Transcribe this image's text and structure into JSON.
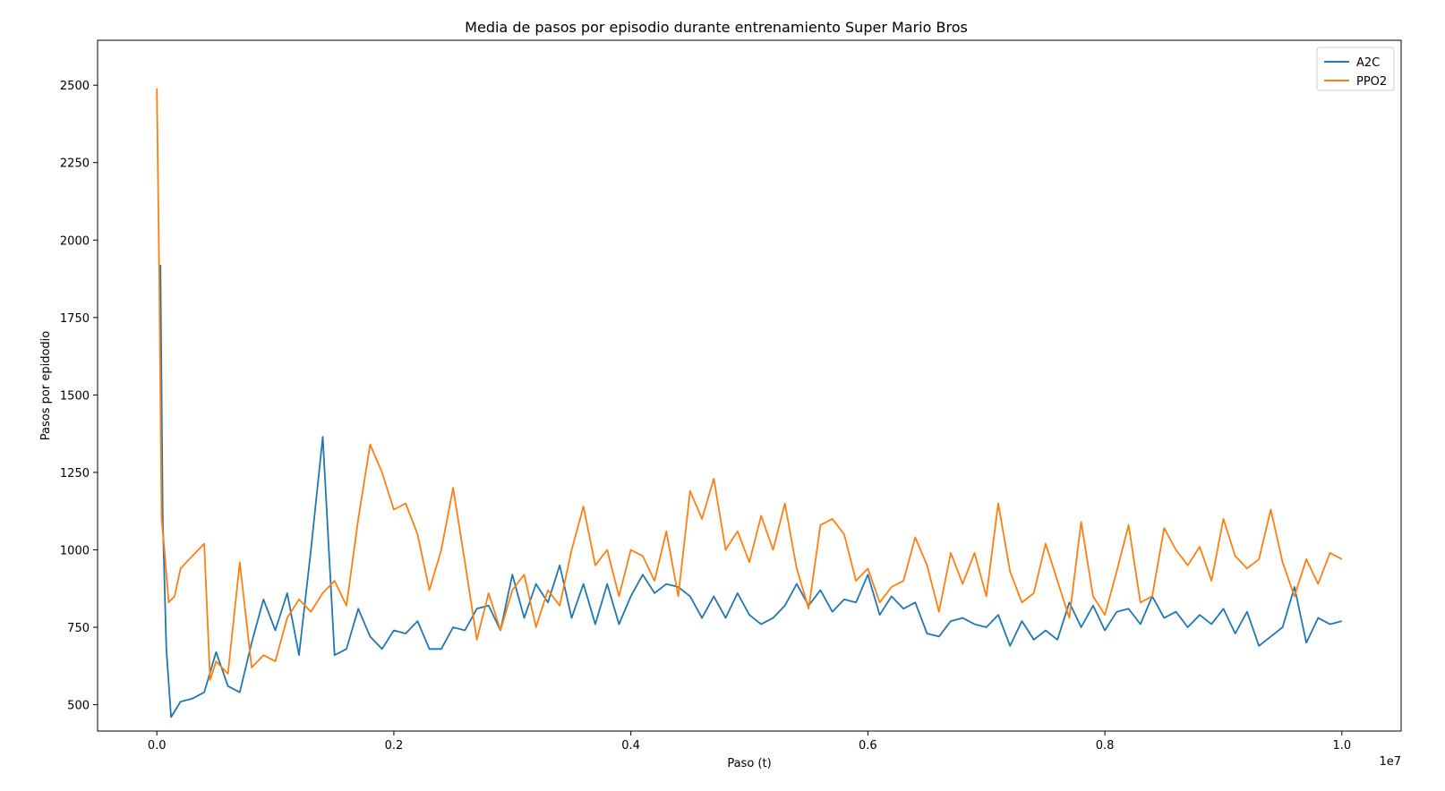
{
  "chart_data": {
    "type": "line",
    "title": "Media de pasos por episodio durante entrenamiento Super Mario Bros",
    "xlabel": "Paso (t)",
    "ylabel": "Pasos por epidodio",
    "x_offset_label": "1e7",
    "xlim": [
      -0.05,
      1.05
    ],
    "ylim": [
      415,
      2645
    ],
    "x_ticks": [
      0.0,
      0.2,
      0.4,
      0.6,
      0.8,
      1.0
    ],
    "x_tick_labels": [
      "0.0",
      "0.2",
      "0.4",
      "0.6",
      "0.8",
      "1.0"
    ],
    "y_ticks": [
      500,
      750,
      1000,
      1250,
      1500,
      1750,
      2000,
      2250,
      2500
    ],
    "y_tick_labels": [
      "500",
      "750",
      "1000",
      "1250",
      "1500",
      "1750",
      "2000",
      "2250",
      "2500"
    ],
    "grid": false,
    "legend_position": "top-right",
    "series": [
      {
        "name": "A2C",
        "color": "#1f77b4",
        "x": [
          0.003,
          0.005,
          0.008,
          0.012,
          0.02,
          0.03,
          0.04,
          0.05,
          0.06,
          0.07,
          0.08,
          0.09,
          0.1,
          0.11,
          0.12,
          0.13,
          0.14,
          0.15,
          0.16,
          0.17,
          0.18,
          0.19,
          0.2,
          0.21,
          0.22,
          0.23,
          0.24,
          0.25,
          0.26,
          0.27,
          0.28,
          0.29,
          0.3,
          0.31,
          0.32,
          0.33,
          0.34,
          0.35,
          0.36,
          0.37,
          0.38,
          0.39,
          0.4,
          0.41,
          0.42,
          0.43,
          0.44,
          0.45,
          0.46,
          0.47,
          0.48,
          0.49,
          0.5,
          0.51,
          0.52,
          0.53,
          0.54,
          0.55,
          0.56,
          0.57,
          0.58,
          0.59,
          0.6,
          0.61,
          0.62,
          0.63,
          0.64,
          0.65,
          0.66,
          0.67,
          0.68,
          0.69,
          0.7,
          0.71,
          0.72,
          0.73,
          0.74,
          0.75,
          0.76,
          0.77,
          0.78,
          0.79,
          0.8,
          0.81,
          0.82,
          0.83,
          0.84,
          0.85,
          0.86,
          0.87,
          0.88,
          0.89,
          0.9,
          0.91,
          0.92,
          0.93,
          0.94,
          0.95,
          0.96,
          0.97,
          0.98,
          0.99,
          1.0
        ],
        "values": [
          1920,
          1100,
          680,
          460,
          510,
          520,
          540,
          670,
          560,
          540,
          700,
          840,
          740,
          860,
          660,
          1000,
          1365,
          660,
          680,
          810,
          720,
          680,
          740,
          730,
          770,
          680,
          680,
          750,
          740,
          810,
          820,
          740,
          920,
          780,
          890,
          830,
          950,
          780,
          890,
          760,
          890,
          760,
          850,
          920,
          860,
          890,
          880,
          850,
          780,
          850,
          780,
          860,
          790,
          760,
          780,
          820,
          890,
          820,
          870,
          800,
          840,
          830,
          920,
          790,
          850,
          810,
          830,
          730,
          720,
          770,
          780,
          760,
          750,
          790,
          690,
          770,
          710,
          740,
          710,
          830,
          750,
          820,
          740,
          800,
          810,
          760,
          850,
          780,
          800,
          750,
          790,
          760,
          810,
          730,
          800,
          690,
          720,
          750,
          880,
          700,
          780,
          760,
          770
        ]
      },
      {
        "name": "PPO2",
        "color": "#ff7f0e",
        "x": [
          0.0,
          0.002,
          0.004,
          0.006,
          0.01,
          0.015,
          0.02,
          0.03,
          0.04,
          0.045,
          0.05,
          0.06,
          0.07,
          0.08,
          0.09,
          0.1,
          0.11,
          0.12,
          0.13,
          0.14,
          0.15,
          0.16,
          0.17,
          0.18,
          0.19,
          0.2,
          0.21,
          0.22,
          0.23,
          0.24,
          0.25,
          0.26,
          0.27,
          0.28,
          0.29,
          0.3,
          0.31,
          0.32,
          0.33,
          0.34,
          0.35,
          0.36,
          0.37,
          0.38,
          0.39,
          0.4,
          0.41,
          0.42,
          0.43,
          0.44,
          0.45,
          0.46,
          0.47,
          0.48,
          0.49,
          0.5,
          0.51,
          0.52,
          0.53,
          0.54,
          0.55,
          0.56,
          0.57,
          0.58,
          0.59,
          0.6,
          0.61,
          0.62,
          0.63,
          0.64,
          0.65,
          0.66,
          0.67,
          0.68,
          0.69,
          0.7,
          0.71,
          0.72,
          0.73,
          0.74,
          0.75,
          0.76,
          0.77,
          0.78,
          0.79,
          0.8,
          0.81,
          0.82,
          0.83,
          0.84,
          0.85,
          0.86,
          0.87,
          0.88,
          0.89,
          0.9,
          0.91,
          0.92,
          0.93,
          0.94,
          0.95,
          0.96,
          0.97,
          0.98,
          0.99,
          1.0
        ],
        "values": [
          2490,
          1900,
          1100,
          1020,
          830,
          850,
          940,
          980,
          1020,
          580,
          640,
          600,
          960,
          620,
          660,
          640,
          780,
          840,
          800,
          860,
          900,
          820,
          1100,
          1340,
          1250,
          1130,
          1150,
          1050,
          870,
          1000,
          1200,
          960,
          710,
          860,
          740,
          870,
          920,
          750,
          870,
          820,
          1000,
          1140,
          950,
          1000,
          850,
          1000,
          980,
          900,
          1060,
          850,
          1190,
          1100,
          1230,
          1000,
          1060,
          960,
          1110,
          1000,
          1150,
          940,
          810,
          1080,
          1100,
          1050,
          900,
          940,
          830,
          880,
          900,
          1040,
          950,
          800,
          990,
          890,
          990,
          850,
          1150,
          930,
          830,
          860,
          1020,
          900,
          780,
          1090,
          850,
          790,
          930,
          1080,
          830,
          850,
          1070,
          1000,
          950,
          1010,
          900,
          1100,
          980,
          940,
          970,
          1130,
          960,
          850,
          970,
          890,
          990,
          970
        ]
      }
    ]
  }
}
